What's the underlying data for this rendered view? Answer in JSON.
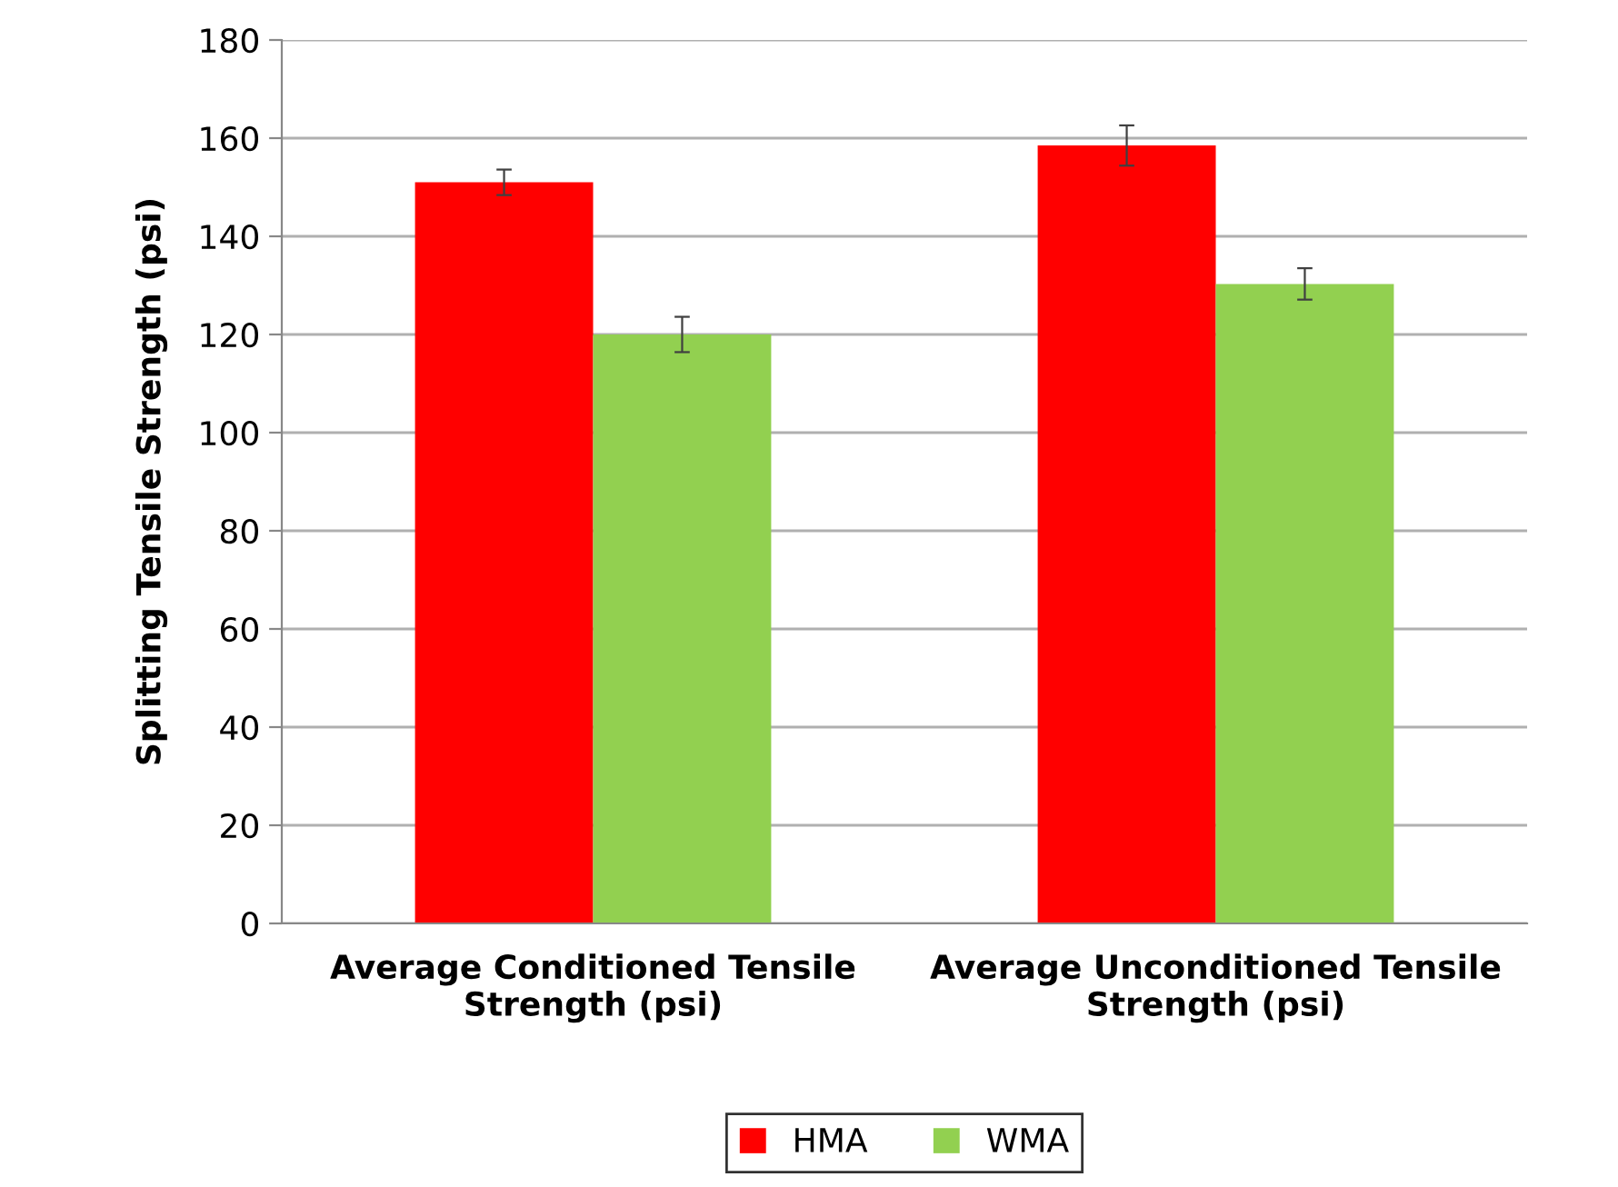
{
  "chart_data": {
    "type": "bar",
    "ylabel": "Splitting Tensile Strength (psi)",
    "categories": [
      "Average Conditioned Tensile\nStrength (psi)",
      "Average Unconditioned Tensile\nStrength (psi)"
    ],
    "series": [
      {
        "name": "HMA",
        "color": "#ff0000",
        "values": [
          151,
          158.5
        ],
        "errors": [
          2.6,
          4.1
        ]
      },
      {
        "name": "WMA",
        "color": "#92d050",
        "values": [
          120,
          130.3
        ],
        "errors": [
          3.6,
          3.2
        ]
      }
    ],
    "ylim": [
      0,
      180
    ],
    "yticks": [
      0,
      20,
      40,
      60,
      80,
      100,
      120,
      140,
      160,
      180
    ],
    "grid": "y",
    "legend": "bottom"
  }
}
